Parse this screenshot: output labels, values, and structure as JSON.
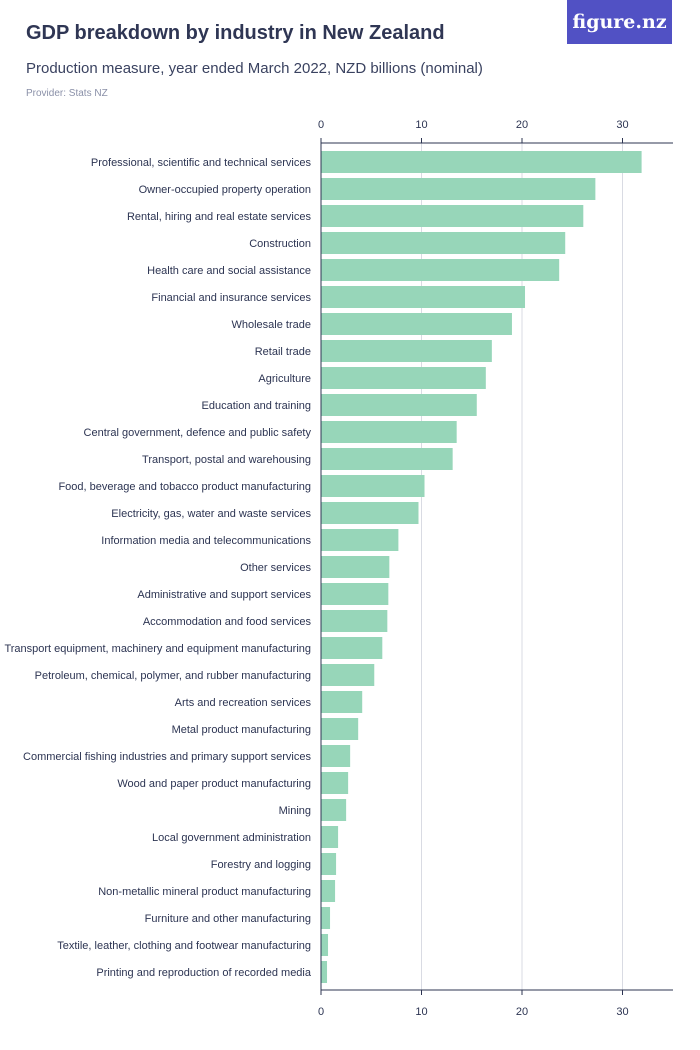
{
  "header": {
    "title": "GDP breakdown by industry in New Zealand",
    "subtitle": "Production measure, year ended March 2022, NZD billions (nominal)",
    "provider": "Provider: Stats NZ",
    "logo_text": "figure.nz"
  },
  "colors": {
    "bar": "#97d6b9",
    "grid": "#d9dbe3",
    "axis": "#2c3452",
    "logo_bg": "#5151c4"
  },
  "chart_data": {
    "type": "bar",
    "orientation": "horizontal",
    "xlim": [
      0,
      35
    ],
    "ticks": [
      0,
      10,
      20,
      30
    ],
    "tick_labels": [
      "0",
      "10",
      "20",
      "30"
    ],
    "axis_position": "top and bottom",
    "grid": true,
    "categories": [
      "Professional, scientific and technical services",
      "Owner-occupied property operation",
      "Rental, hiring and real estate services",
      "Construction",
      "Health care and social assistance",
      "Financial and insurance services",
      "Wholesale trade",
      "Retail trade",
      "Agriculture",
      "Education and training",
      "Central government, defence and public safety",
      "Transport, postal and warehousing",
      "Food, beverage and tobacco product manufacturing",
      "Electricity, gas, water and waste services",
      "Information media and telecommunications",
      "Other services",
      "Administrative and support services",
      "Accommodation and food services",
      "Transport equipment, machinery and equipment manufacturing",
      "Petroleum, chemical, polymer, and rubber manufacturing",
      "Arts and recreation services",
      "Metal product manufacturing",
      "Commercial fishing industries and primary support services",
      "Wood and paper product manufacturing",
      "Mining",
      "Local government administration",
      "Forestry and logging",
      "Non-metallic mineral product manufacturing",
      "Furniture and other manufacturing",
      "Textile, leather, clothing and footwear manufacturing",
      "Printing and reproduction of recorded media"
    ],
    "values": [
      31.9,
      27.3,
      26.1,
      24.3,
      23.7,
      20.3,
      19.0,
      17.0,
      16.4,
      15.5,
      13.5,
      13.1,
      10.3,
      9.7,
      7.7,
      6.8,
      6.7,
      6.6,
      6.1,
      5.3,
      4.1,
      3.7,
      2.9,
      2.7,
      2.5,
      1.7,
      1.5,
      1.4,
      0.9,
      0.7,
      0.6
    ]
  }
}
